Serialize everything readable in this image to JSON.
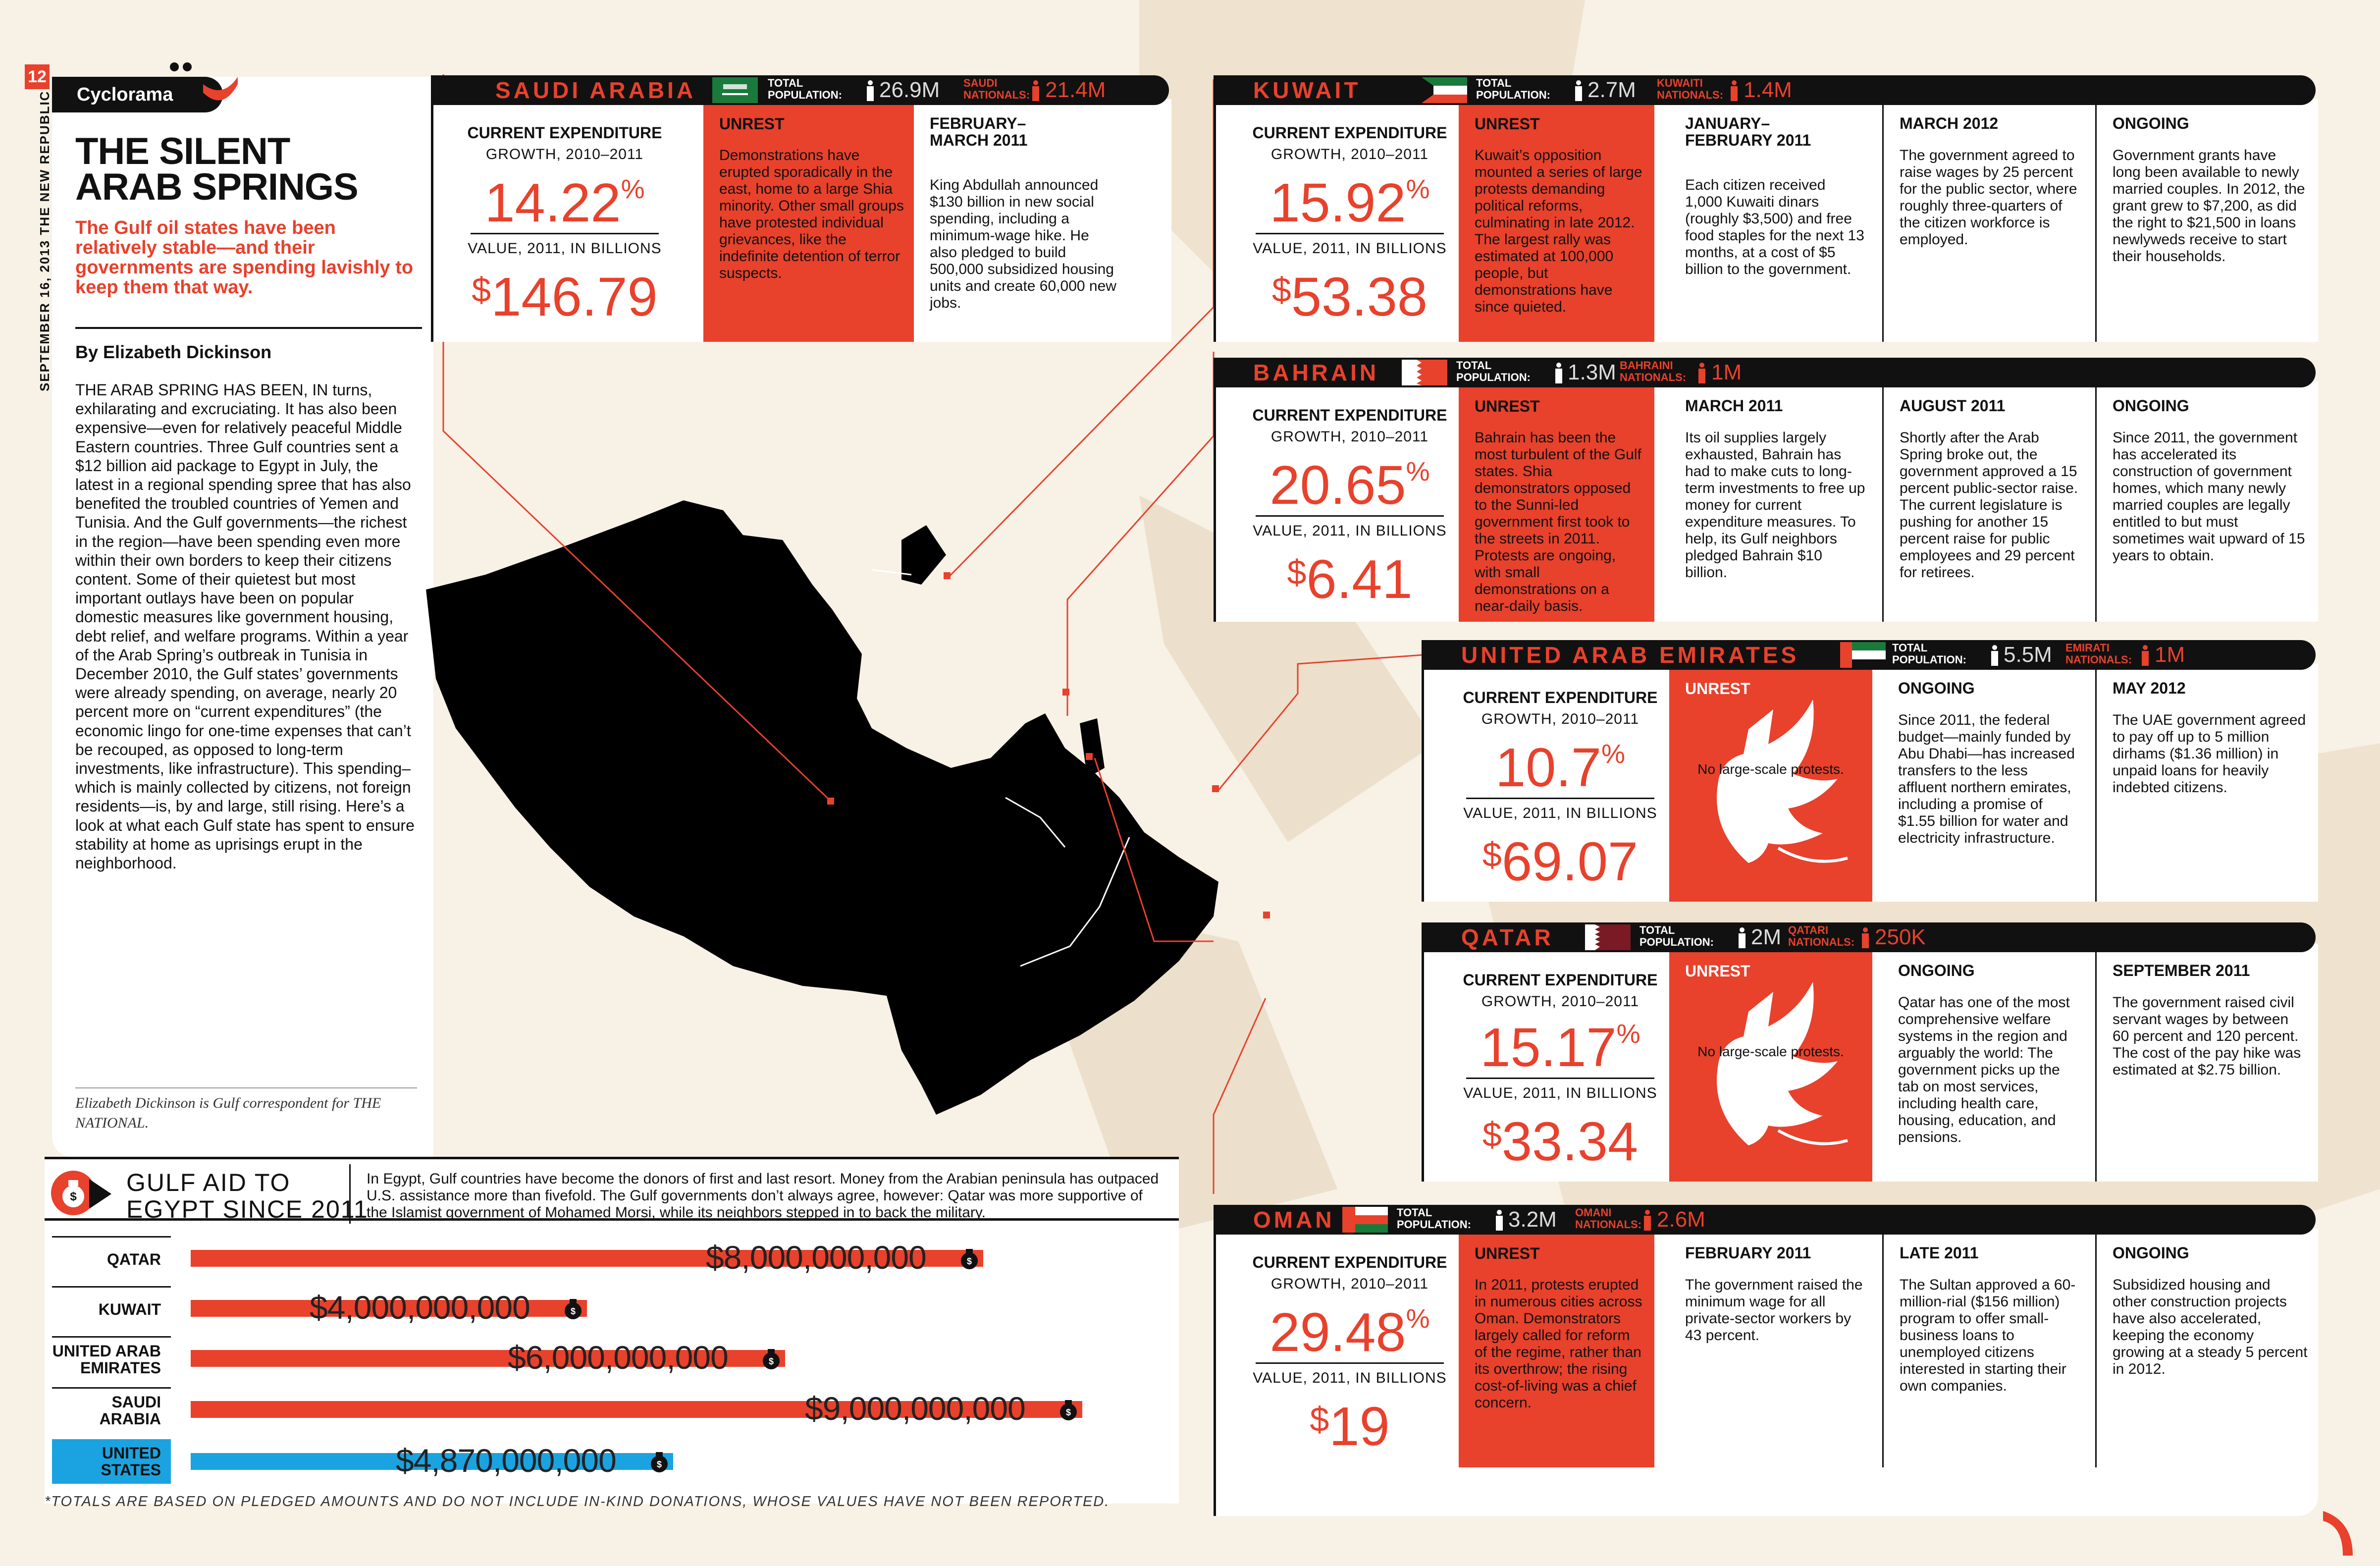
{
  "page_number": "12",
  "spine_text": "SEPTEMBER 16, 2013 THE NEW REPUBLIC",
  "section": "Cyclorama",
  "headline_line1": "THE SILENT",
  "headline_line2": "ARAB SPRINGS",
  "deck": "The Gulf oil states have been relatively stable—and their governments are spending lavishly to keep them that way.",
  "byline": "By Elizabeth Dickinson",
  "body_lead": "The Arab Spring has been, in",
  "body": "turns, exhilarating and excruciating. It has also been expensive—even for relatively peaceful Middle Eastern countries. Three Gulf countries sent a $12 billion aid package to Egypt in July, the latest in a regional spending spree that has also benefited the troubled countries of Yemen and Tunisia. And the Gulf governments—the richest in the region—have been spending even more within their own borders to keep their citizens content. Some of their quietest but most important outlays have been on popular domestic measures like government housing, debt relief, and welfare programs. Within a year of the Arab Spring’s outbreak in Tunisia in December 2010, the Gulf states’ governments were already spending, on average, nearly 20 percent more on “current expenditures” (the economic lingo for one-time expenses that can’t be recouped, as opposed to long-term investments, like infrastructure). This spending–which is mainly collected by citizens, not foreign residents—is, by and large, still rising. Here’s a look at what each Gulf state has spent to ensure stability at home as uprisings erupt in the neighborhood.",
  "author_note": "Elizabeth Dickinson is Gulf correspondent for THE NATIONAL.",
  "labels": {
    "current_expenditure": "CURRENT EXPENDITURE",
    "growth": "GROWTH, 2010–2011",
    "value": "VALUE, 2011, IN BILLIONS",
    "unrest": "UNREST",
    "total_population_1": "TOTAL",
    "total_population_2": "POPULATION:",
    "percent": "%",
    "dollar": "$"
  },
  "countries": {
    "saudi": {
      "name": "SAUDI ARABIA",
      "population": "26.9M",
      "nationals_label_1": "SAUDI",
      "nationals_label_2": "NATIONALS:",
      "nationals": "21.4M",
      "growth": "14.22",
      "value": "146.79",
      "unrest": "Demonstrations have erupted sporadically in the east, home to a large Shia minority. Other small groups have protested individual grievances, like the indefinite detention of terror suspects.",
      "col1_title": "FEBRUARY– MARCH 2011",
      "col1_text": "King Abdullah announced $130 billion in new social spending, including a minimum-wage hike. He also pledged to build 500,000 subsidized housing units and create 60,000 new jobs."
    },
    "kuwait": {
      "name": "KUWAIT",
      "population": "2.7M",
      "nationals_label_1": "KUWAITI",
      "nationals_label_2": "NATIONALS:",
      "nationals": "1.4M",
      "growth": "15.92",
      "value": "53.38",
      "unrest": "Kuwait’s opposition mounted a series of large protests demanding political reforms, culminating in late 2012. The largest rally was estimated at 100,000 people, but demonstrations have since quieted.",
      "col1_title": "JANUARY– FEBRUARY 2011",
      "col1_text": "Each citizen received 1,000 Kuwaiti dinars (roughly $3,500) and free food staples for the next 13 months, at a cost of $5 billion to the government.",
      "col2_title": "MARCH 2012",
      "col2_text": "The government agreed to raise wages by 25 percent for the public sector, where roughly three-quarters of the citizen workforce is employed.",
      "col3_title": "ONGOING",
      "col3_text": "Government grants have long been available to newly married couples. In 2012, the grant grew to $7,200, as did the right to $21,500 in loans newlyweds receive to start their households."
    },
    "bahrain": {
      "name": "BAHRAIN",
      "population": "1.3M",
      "nationals_label_1": "BAHRAINI",
      "nationals_label_2": "NATIONALS:",
      "nationals": "1M",
      "growth": "20.65",
      "value": "6.41",
      "unrest": "Bahrain has been the most turbulent of the Gulf states. Shia demonstrators opposed to the Sunni-led government first took to the streets in 2011. Protests are ongoing, with small demonstrations on a near-daily basis.",
      "col1_title": "MARCH 2011",
      "col1_text": "Its oil supplies largely exhausted, Bahrain has had to make cuts to long-term investments to free up money for current expenditure measures. To help, its Gulf neighbors pledged Bahrain $10 billion.",
      "col2_title": "AUGUST 2011",
      "col2_text": "Shortly after the Arab Spring broke out, the government approved a 15 percent public-sector raise. The current legislature is pushing for another 15 percent raise for public employees and 29 percent for retirees.",
      "col3_title": "ONGOING",
      "col3_text": "Since 2011, the government has accelerated its construction of government homes, which many newly married couples are legally entitled to but must sometimes wait upward of 15 years to obtain."
    },
    "uae": {
      "name": "UNITED ARAB EMIRATES",
      "population": "5.5M",
      "nationals_label_1": "EMIRATI",
      "nationals_label_2": "NATIONALS:",
      "nationals": "1M",
      "growth": "10.7",
      "value": "69.07",
      "unrest": "No large-scale protests.",
      "col1_title": "ONGOING",
      "col1_text": "Since 2011, the federal budget—mainly funded by Abu Dhabi—has increased transfers to the less affluent northern emirates, including a promise of $1.55 billion for water and electricity infrastructure.",
      "col2_title": "MAY 2012",
      "col2_text": "The UAE government agreed to pay off up to 5 million dirhams ($1.36 million) in unpaid loans for heavily indebted citizens."
    },
    "qatar": {
      "name": "QATAR",
      "population": "2M",
      "nationals_label_1": "QATARI",
      "nationals_label_2": "NATIONALS:",
      "nationals": "250K",
      "growth": "15.17",
      "value": "33.34",
      "unrest": "No large-scale protests.",
      "col1_title": "ONGOING",
      "col1_text": "Qatar has one of the most comprehensive welfare systems in the region and arguably the world: The government picks up the tab on most services, including health care, housing, education, and pensions.",
      "col2_title": "SEPTEMBER 2011",
      "col2_text": "The government raised civil servant wages by between 60 percent and 120 percent. The cost of the pay hike was estimated at $2.75 billion."
    },
    "oman": {
      "name": "OMAN",
      "population": "3.2M",
      "nationals_label_1": "OMANI",
      "nationals_label_2": "NATIONALS:",
      "nationals": "2.6M",
      "growth": "29.48",
      "value": "19",
      "unrest": "In 2011, protests erupted in numerous cities across Oman. Demonstrators largely called for reform of the regime, rather than its overthrow; the rising cost-of-living was a chief concern.",
      "col1_title": "FEBRUARY 2011",
      "col1_text": "The government raised the minimum wage for all private-sector workers by 43 percent.",
      "col2_title": "LATE 2011",
      "col2_text": "The Sultan approved a 60-million-rial ($156 million) program to offer small-business loans to unemployed citizens interested in starting their own companies.",
      "col3_title": "ONGOING",
      "col3_text": "Subsidized housing and other construction projects have also accelerated, keeping the economy growing at a steady 5 percent in 2012."
    }
  },
  "aid": {
    "title_line1": "GULF AID TO",
    "title_line2": "EGYPT SINCE 2011",
    "description": "In Egypt, Gulf countries have become the donors of first and last resort. Money from the Arabian peninsula has outpaced U.S. assistance more than fivefold. The Gulf governments don’t always agree, however: Qatar was more supportive of the Islamist government of Mohamed Morsi, while its neighbors stepped in to back the military.",
    "rows": [
      {
        "label": "QATAR",
        "amount": "$8,000,000,000",
        "value": 8000000000
      },
      {
        "label": "KUWAIT",
        "amount": "$4,000,000,000",
        "value": 4000000000
      },
      {
        "label": "UNITED ARAB EMIRATES",
        "amount": "$6,000,000,000",
        "value": 6000000000
      },
      {
        "label": "SAUDI ARABIA",
        "amount": "$9,000,000,000",
        "value": 9000000000
      },
      {
        "label": "UNITED STATES",
        "amount": "$4,870,000,000",
        "value": 4870000000
      }
    ],
    "footnote": "*TOTALS ARE BASED ON PLEDGED AMOUNTS AND DO NOT INCLUDE IN-KIND DONATIONS, WHOSE VALUES HAVE NOT BEEN REPORTED."
  },
  "colors": {
    "accent": "#e8412c",
    "us_blue": "#1aa3e0",
    "ink": "#111111",
    "paper": "#f7f1e6"
  },
  "icons": [
    "dove-icon",
    "person-icon",
    "money-bag-icon",
    "flag-icon"
  ]
}
